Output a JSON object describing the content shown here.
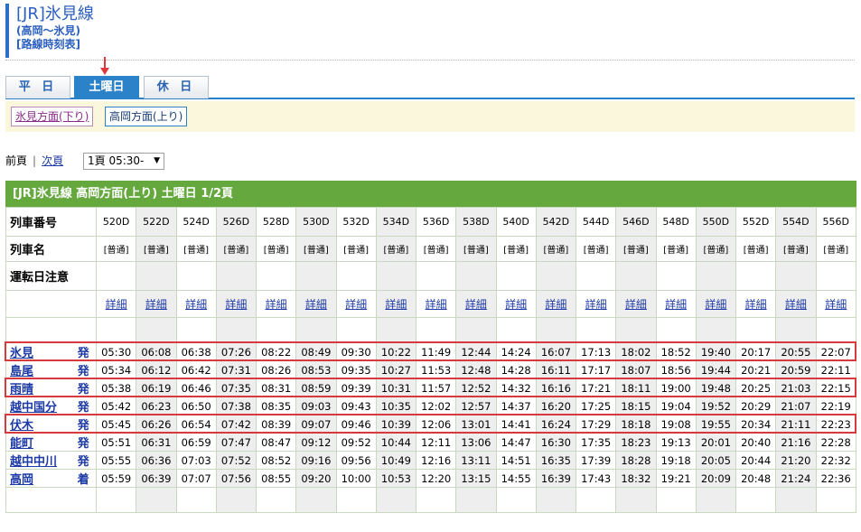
{
  "header": {
    "title": "[JR]氷見線",
    "route": "(高岡～氷見)",
    "kind": "[路線時刻表]"
  },
  "tabs": [
    {
      "label": "平 日",
      "active": false
    },
    {
      "label": "土曜日",
      "active": true
    },
    {
      "label": "休 日",
      "active": false
    }
  ],
  "directions": [
    {
      "label": "氷見方面(下り)",
      "active": false
    },
    {
      "label": "高岡方面(上り)",
      "active": true
    }
  ],
  "pager": {
    "prev": "前頁",
    "next": "次頁",
    "page_select": "1頁 05:30-"
  },
  "table_title": "[JR]氷見線 高岡方面(上り) 土曜日 1/2頁",
  "row_labels": {
    "train_no": "列車番号",
    "train_name": "列車名",
    "notes": "運転日注意"
  },
  "trains": [
    "520D",
    "522D",
    "524D",
    "526D",
    "528D",
    "530D",
    "532D",
    "534D",
    "536D",
    "538D",
    "540D",
    "542D",
    "544D",
    "546D",
    "548D",
    "550D",
    "552D",
    "554D",
    "556D"
  ],
  "train_type": "[普通]",
  "detail_label": "詳細",
  "stations": [
    {
      "name": "氷見",
      "action": "発",
      "times": [
        "05:30",
        "06:08",
        "06:38",
        "07:26",
        "08:22",
        "08:49",
        "09:30",
        "10:22",
        "11:49",
        "12:44",
        "14:24",
        "16:07",
        "17:13",
        "18:02",
        "18:52",
        "19:40",
        "20:17",
        "20:55",
        "22:07"
      ],
      "highlight": true
    },
    {
      "name": "島尾",
      "action": "発",
      "times": [
        "05:34",
        "06:12",
        "06:42",
        "07:31",
        "08:26",
        "08:53",
        "09:35",
        "10:27",
        "11:53",
        "12:48",
        "14:28",
        "16:11",
        "17:17",
        "18:07",
        "18:56",
        "19:44",
        "20:21",
        "20:59",
        "22:11"
      ],
      "highlight": false
    },
    {
      "name": "雨晴",
      "action": "発",
      "times": [
        "05:38",
        "06:19",
        "06:46",
        "07:35",
        "08:31",
        "08:59",
        "09:39",
        "10:31",
        "11:57",
        "12:52",
        "14:32",
        "16:16",
        "17:21",
        "18:11",
        "19:00",
        "19:48",
        "20:25",
        "21:03",
        "22:15"
      ],
      "highlight": true
    },
    {
      "name": "越中国分",
      "action": "発",
      "times": [
        "05:42",
        "06:23",
        "06:50",
        "07:38",
        "08:35",
        "09:03",
        "09:43",
        "10:35",
        "12:02",
        "12:57",
        "14:37",
        "16:20",
        "17:25",
        "18:15",
        "19:04",
        "19:52",
        "20:29",
        "21:07",
        "22:19"
      ],
      "highlight": false
    },
    {
      "name": "伏木",
      "action": "発",
      "times": [
        "05:45",
        "06:26",
        "06:54",
        "07:42",
        "08:39",
        "09:07",
        "09:46",
        "10:39",
        "12:06",
        "13:01",
        "14:41",
        "16:24",
        "17:29",
        "18:18",
        "19:08",
        "19:55",
        "20:34",
        "21:11",
        "22:23"
      ],
      "highlight": true
    },
    {
      "name": "能町",
      "action": "発",
      "times": [
        "05:51",
        "06:31",
        "06:59",
        "07:47",
        "08:47",
        "09:12",
        "09:52",
        "10:44",
        "12:11",
        "13:06",
        "14:47",
        "16:30",
        "17:35",
        "18:23",
        "19:13",
        "20:01",
        "20:40",
        "21:16",
        "22:28"
      ],
      "highlight": false
    },
    {
      "name": "越中中川",
      "action": "発",
      "times": [
        "05:55",
        "06:36",
        "07:03",
        "07:52",
        "08:52",
        "09:16",
        "09:56",
        "10:49",
        "12:16",
        "13:11",
        "14:51",
        "16:35",
        "17:39",
        "18:28",
        "19:18",
        "20:05",
        "20:44",
        "21:20",
        "22:32"
      ],
      "highlight": false
    },
    {
      "name": "高岡",
      "action": "着",
      "times": [
        "05:59",
        "06:39",
        "07:07",
        "07:56",
        "08:55",
        "09:20",
        "10:00",
        "10:53",
        "12:20",
        "13:15",
        "14:55",
        "16:39",
        "17:43",
        "18:32",
        "19:21",
        "20:09",
        "20:48",
        "21:24",
        "22:36"
      ],
      "highlight": false
    }
  ],
  "colors": {
    "accent_blue": "#2b82c9",
    "header_green": "#65a83e",
    "highlight_red": "#d8393c"
  }
}
